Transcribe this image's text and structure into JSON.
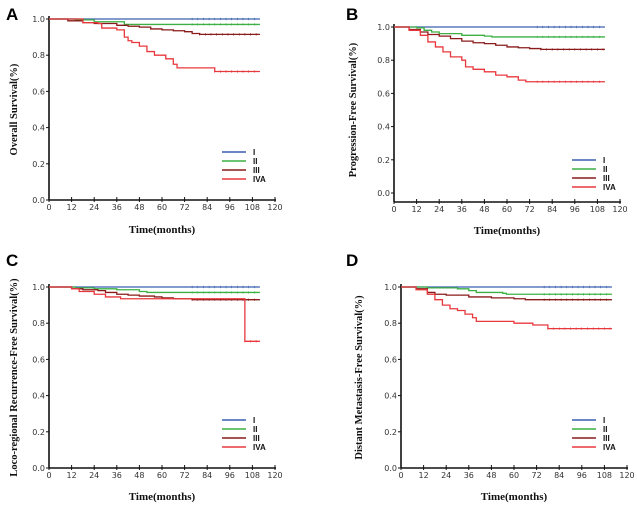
{
  "figure": {
    "legend": [
      {
        "label": "I",
        "color": "#3a5fb0"
      },
      {
        "label": "II",
        "color": "#3cb043"
      },
      {
        "label": "III",
        "color": "#8b1a1a"
      },
      {
        "label": "IVA",
        "color": "#e8383d"
      }
    ]
  },
  "chart_data": [
    {
      "panel": "A",
      "type": "line",
      "title": "",
      "xlabel": "Time(months)",
      "ylabel": "Overall Survival(%)",
      "xlim": [
        0,
        120
      ],
      "ylim": [
        0,
        1.0
      ],
      "xticks": [
        "0",
        "12",
        "24",
        "36",
        "48",
        "60",
        "72",
        "84",
        "96",
        "108",
        "120"
      ],
      "yticks": [
        "0.0",
        "0.2",
        "0.4",
        "0.6",
        "0.8",
        "1.0"
      ],
      "legend_position": "bottom-right",
      "grid": false,
      "series": [
        {
          "name": "I",
          "x": [
            0,
            112
          ],
          "y": [
            1.0,
            1.0
          ]
        },
        {
          "name": "II",
          "x": [
            0,
            14,
            24,
            40,
            112
          ],
          "y": [
            1.0,
            0.995,
            0.985,
            0.97,
            0.97
          ]
        },
        {
          "name": "III",
          "x": [
            0,
            10,
            18,
            24,
            36,
            42,
            48,
            54,
            60,
            66,
            72,
            76,
            80,
            112
          ],
          "y": [
            1.0,
            0.99,
            0.98,
            0.975,
            0.965,
            0.96,
            0.955,
            0.945,
            0.94,
            0.935,
            0.93,
            0.92,
            0.915,
            0.915
          ]
        },
        {
          "name": "IVA",
          "x": [
            0,
            18,
            26,
            28,
            36,
            40,
            42,
            44,
            48,
            52,
            56,
            62,
            66,
            68,
            88,
            112
          ],
          "y": [
            1.0,
            0.98,
            0.975,
            0.95,
            0.94,
            0.9,
            0.88,
            0.87,
            0.85,
            0.82,
            0.8,
            0.78,
            0.75,
            0.73,
            0.71,
            0.71
          ]
        }
      ]
    },
    {
      "panel": "B",
      "type": "line",
      "title": "",
      "xlabel": "Time(months)",
      "ylabel": "Progression-Free Survival(%)",
      "xlim": [
        0,
        120
      ],
      "ylim": [
        0,
        1.0
      ],
      "xticks": [
        "0",
        "12",
        "24",
        "36",
        "48",
        "60",
        "72",
        "84",
        "96",
        "108",
        "120"
      ],
      "yticks": [
        "0.0",
        "0.2",
        "0.4",
        "0.6",
        "0.8",
        "1.0"
      ],
      "legend_position": "bottom-right",
      "grid": false,
      "series": [
        {
          "name": "I",
          "x": [
            0,
            112
          ],
          "y": [
            1.0,
            1.0
          ]
        },
        {
          "name": "II",
          "x": [
            0,
            12,
            16,
            20,
            24,
            36,
            48,
            52,
            112
          ],
          "y": [
            1.0,
            0.995,
            0.98,
            0.97,
            0.96,
            0.95,
            0.945,
            0.94,
            0.94
          ]
        },
        {
          "name": "III",
          "x": [
            0,
            8,
            14,
            18,
            24,
            30,
            36,
            42,
            48,
            54,
            60,
            66,
            72,
            78,
            112
          ],
          "y": [
            1.0,
            0.985,
            0.97,
            0.955,
            0.945,
            0.93,
            0.915,
            0.905,
            0.9,
            0.89,
            0.88,
            0.875,
            0.87,
            0.865,
            0.865
          ]
        },
        {
          "name": "IVA",
          "x": [
            0,
            8,
            14,
            18,
            22,
            26,
            30,
            36,
            38,
            42,
            48,
            54,
            60,
            66,
            70,
            112
          ],
          "y": [
            1.0,
            0.98,
            0.95,
            0.91,
            0.88,
            0.85,
            0.82,
            0.8,
            0.76,
            0.745,
            0.73,
            0.71,
            0.7,
            0.68,
            0.67,
            0.67
          ]
        }
      ]
    },
    {
      "panel": "C",
      "type": "line",
      "title": "",
      "xlabel": "Time(months)",
      "ylabel": "Loco-regional Recurrence-Free Survival(%)",
      "xlim": [
        0,
        120
      ],
      "ylim": [
        0,
        1.0
      ],
      "xticks": [
        "0",
        "12",
        "24",
        "36",
        "48",
        "60",
        "72",
        "84",
        "96",
        "108",
        "120"
      ],
      "yticks": [
        "0.0",
        "0.2",
        "0.4",
        "0.6",
        "0.8",
        "1.0"
      ],
      "legend_position": "bottom-right",
      "grid": false,
      "series": [
        {
          "name": "I",
          "x": [
            0,
            112
          ],
          "y": [
            1.0,
            1.0
          ]
        },
        {
          "name": "II",
          "x": [
            0,
            14,
            24,
            36,
            48,
            52,
            112
          ],
          "y": [
            1.0,
            0.995,
            0.99,
            0.985,
            0.975,
            0.97,
            0.97
          ]
        },
        {
          "name": "III",
          "x": [
            0,
            12,
            18,
            26,
            30,
            36,
            42,
            48,
            56,
            60,
            66,
            76,
            112
          ],
          "y": [
            1.0,
            0.99,
            0.985,
            0.98,
            0.97,
            0.96,
            0.955,
            0.95,
            0.945,
            0.94,
            0.935,
            0.93,
            0.93
          ]
        },
        {
          "name": "IVA",
          "x": [
            0,
            12,
            16,
            24,
            30,
            38,
            104,
            112
          ],
          "y": [
            1.0,
            0.99,
            0.975,
            0.96,
            0.945,
            0.935,
            0.7,
            0.7
          ]
        }
      ]
    },
    {
      "panel": "D",
      "type": "line",
      "title": "",
      "xlabel": "Time(months)",
      "ylabel": "Distant Metastasis-Free Survival(%)",
      "xlim": [
        0,
        120
      ],
      "ylim": [
        0,
        1.0
      ],
      "xticks": [
        "0",
        "12",
        "24",
        "36",
        "48",
        "60",
        "72",
        "84",
        "96",
        "108",
        "120"
      ],
      "yticks": [
        "0.0",
        "0.2",
        "0.4",
        "0.6",
        "0.8",
        "1.0"
      ],
      "legend_position": "bottom-right",
      "grid": false,
      "series": [
        {
          "name": "I",
          "x": [
            0,
            112
          ],
          "y": [
            1.0,
            1.0
          ]
        },
        {
          "name": "II",
          "x": [
            0,
            14,
            30,
            36,
            40,
            54,
            56,
            112
          ],
          "y": [
            1.0,
            0.995,
            0.99,
            0.98,
            0.97,
            0.965,
            0.96,
            0.96
          ]
        },
        {
          "name": "III",
          "x": [
            0,
            8,
            14,
            18,
            24,
            36,
            48,
            60,
            66,
            112
          ],
          "y": [
            1.0,
            0.99,
            0.97,
            0.96,
            0.955,
            0.945,
            0.94,
            0.935,
            0.93,
            0.93
          ]
        },
        {
          "name": "IVA",
          "x": [
            0,
            8,
            14,
            18,
            22,
            26,
            30,
            34,
            38,
            40,
            60,
            70,
            78,
            112
          ],
          "y": [
            1.0,
            0.985,
            0.96,
            0.93,
            0.9,
            0.88,
            0.87,
            0.85,
            0.83,
            0.81,
            0.8,
            0.79,
            0.77,
            0.77
          ]
        }
      ]
    }
  ]
}
